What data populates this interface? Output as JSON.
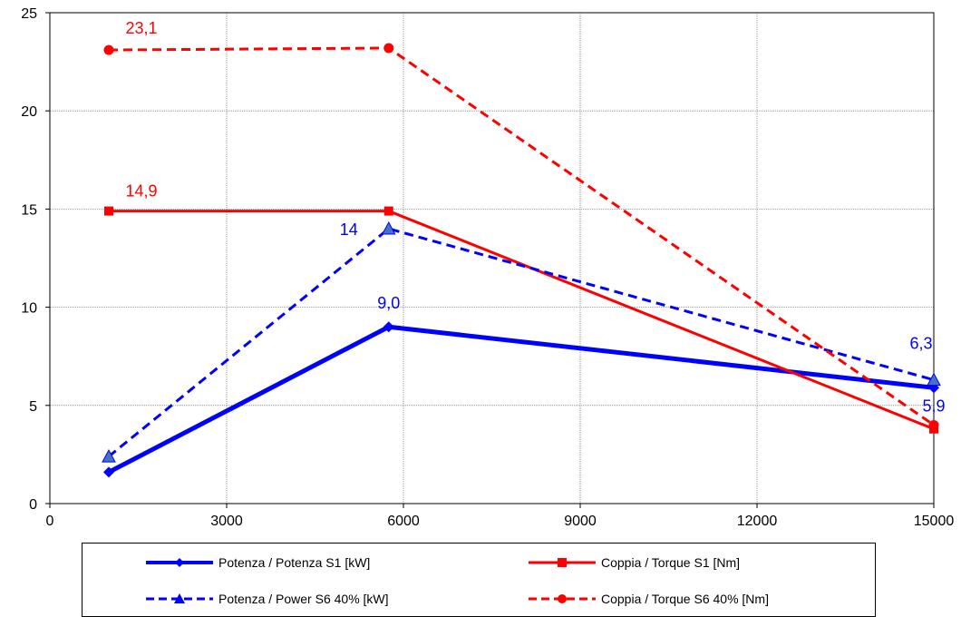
{
  "chart_data": {
    "type": "line",
    "xlim": [
      0,
      15000
    ],
    "ylim": [
      0,
      25
    ],
    "xticks": [
      "0",
      "3000",
      "6000",
      "9000",
      "12000",
      "15000"
    ],
    "yticks": [
      "0",
      "5",
      "10",
      "15",
      "20",
      "25"
    ],
    "grid": true,
    "legend_position": "bottom",
    "series": [
      {
        "name": "Potenza / Potenza S1 [kW]",
        "color": "#0000FF",
        "dash": "solid",
        "marker": "diamond",
        "x": [
          1000,
          5750,
          15000
        ],
        "y": [
          1.6,
          9.0,
          5.9
        ],
        "labels": [
          "",
          "9,0",
          "5,9"
        ]
      },
      {
        "name": "Coppia / Torque S1 [Nm]",
        "color": "#FF0000",
        "dash": "solid",
        "marker": "square",
        "x": [
          1000,
          5750,
          15000
        ],
        "y": [
          14.9,
          14.9,
          3.8
        ],
        "labels": [
          "14,9",
          "",
          ""
        ]
      },
      {
        "name": "Potenza / Power S6 40% [kW]",
        "color": "#0000FF",
        "dash": "dashed",
        "marker": "triangle",
        "x": [
          1000,
          5750,
          15000
        ],
        "y": [
          2.4,
          14.0,
          6.3
        ],
        "labels": [
          "",
          "14",
          "6,3"
        ]
      },
      {
        "name": "Coppia / Torque S6 40% [Nm]",
        "color": "#FF0000",
        "dash": "dashed",
        "marker": "circle",
        "x": [
          1000,
          5750,
          15000
        ],
        "y": [
          23.1,
          23.2,
          4.0
        ],
        "labels": [
          "23,1",
          "",
          ""
        ]
      }
    ]
  }
}
